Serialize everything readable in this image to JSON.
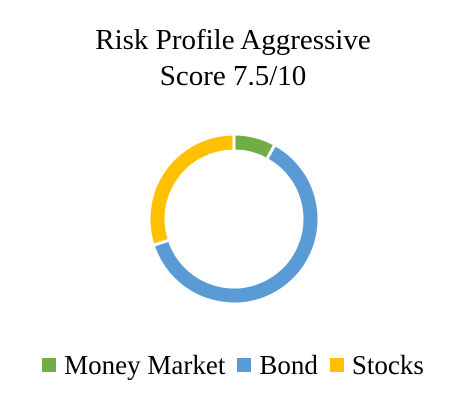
{
  "chart_data": {
    "type": "pie",
    "variant": "donut",
    "title": [
      "Risk Profile Aggressive",
      "Score 7.5/10"
    ],
    "categories": [
      "Money Market",
      "Bond",
      "Stocks"
    ],
    "values": [
      8,
      62,
      30
    ],
    "value_unit": "percent",
    "colors": [
      "#70AD47",
      "#5B9BD5",
      "#FFC000"
    ],
    "legend_position": "bottom"
  }
}
